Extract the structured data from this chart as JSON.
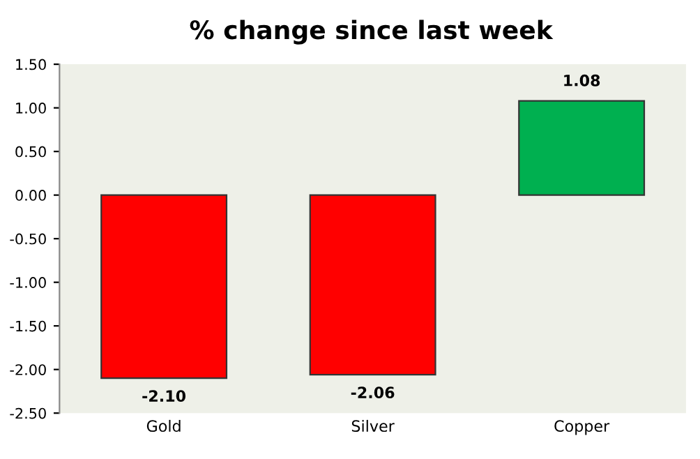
{
  "chart_data": {
    "type": "bar",
    "title": "% change since last week",
    "categories": [
      "Gold",
      "Silver",
      "Copper"
    ],
    "values": [
      -2.1,
      -2.06,
      1.08
    ],
    "colors": [
      "#ff0000",
      "#ff0000",
      "#00b050"
    ],
    "value_labels": [
      "-2.10",
      "-2.06",
      "1.08"
    ],
    "ylim": [
      -2.5,
      1.5
    ],
    "yticks": [
      {
        "value": -2.5,
        "label": "-2.50"
      },
      {
        "value": -2.0,
        "label": "-2.00"
      },
      {
        "value": -1.5,
        "label": "-1.50"
      },
      {
        "value": -1.0,
        "label": "-1.00"
      },
      {
        "value": -0.5,
        "label": "-0.50"
      },
      {
        "value": 0.0,
        "label": "0.00"
      },
      {
        "value": 0.5,
        "label": "0.50"
      },
      {
        "value": 1.0,
        "label": "1.00"
      },
      {
        "value": 1.5,
        "label": "1.50"
      }
    ],
    "grid": false,
    "legend": false
  }
}
